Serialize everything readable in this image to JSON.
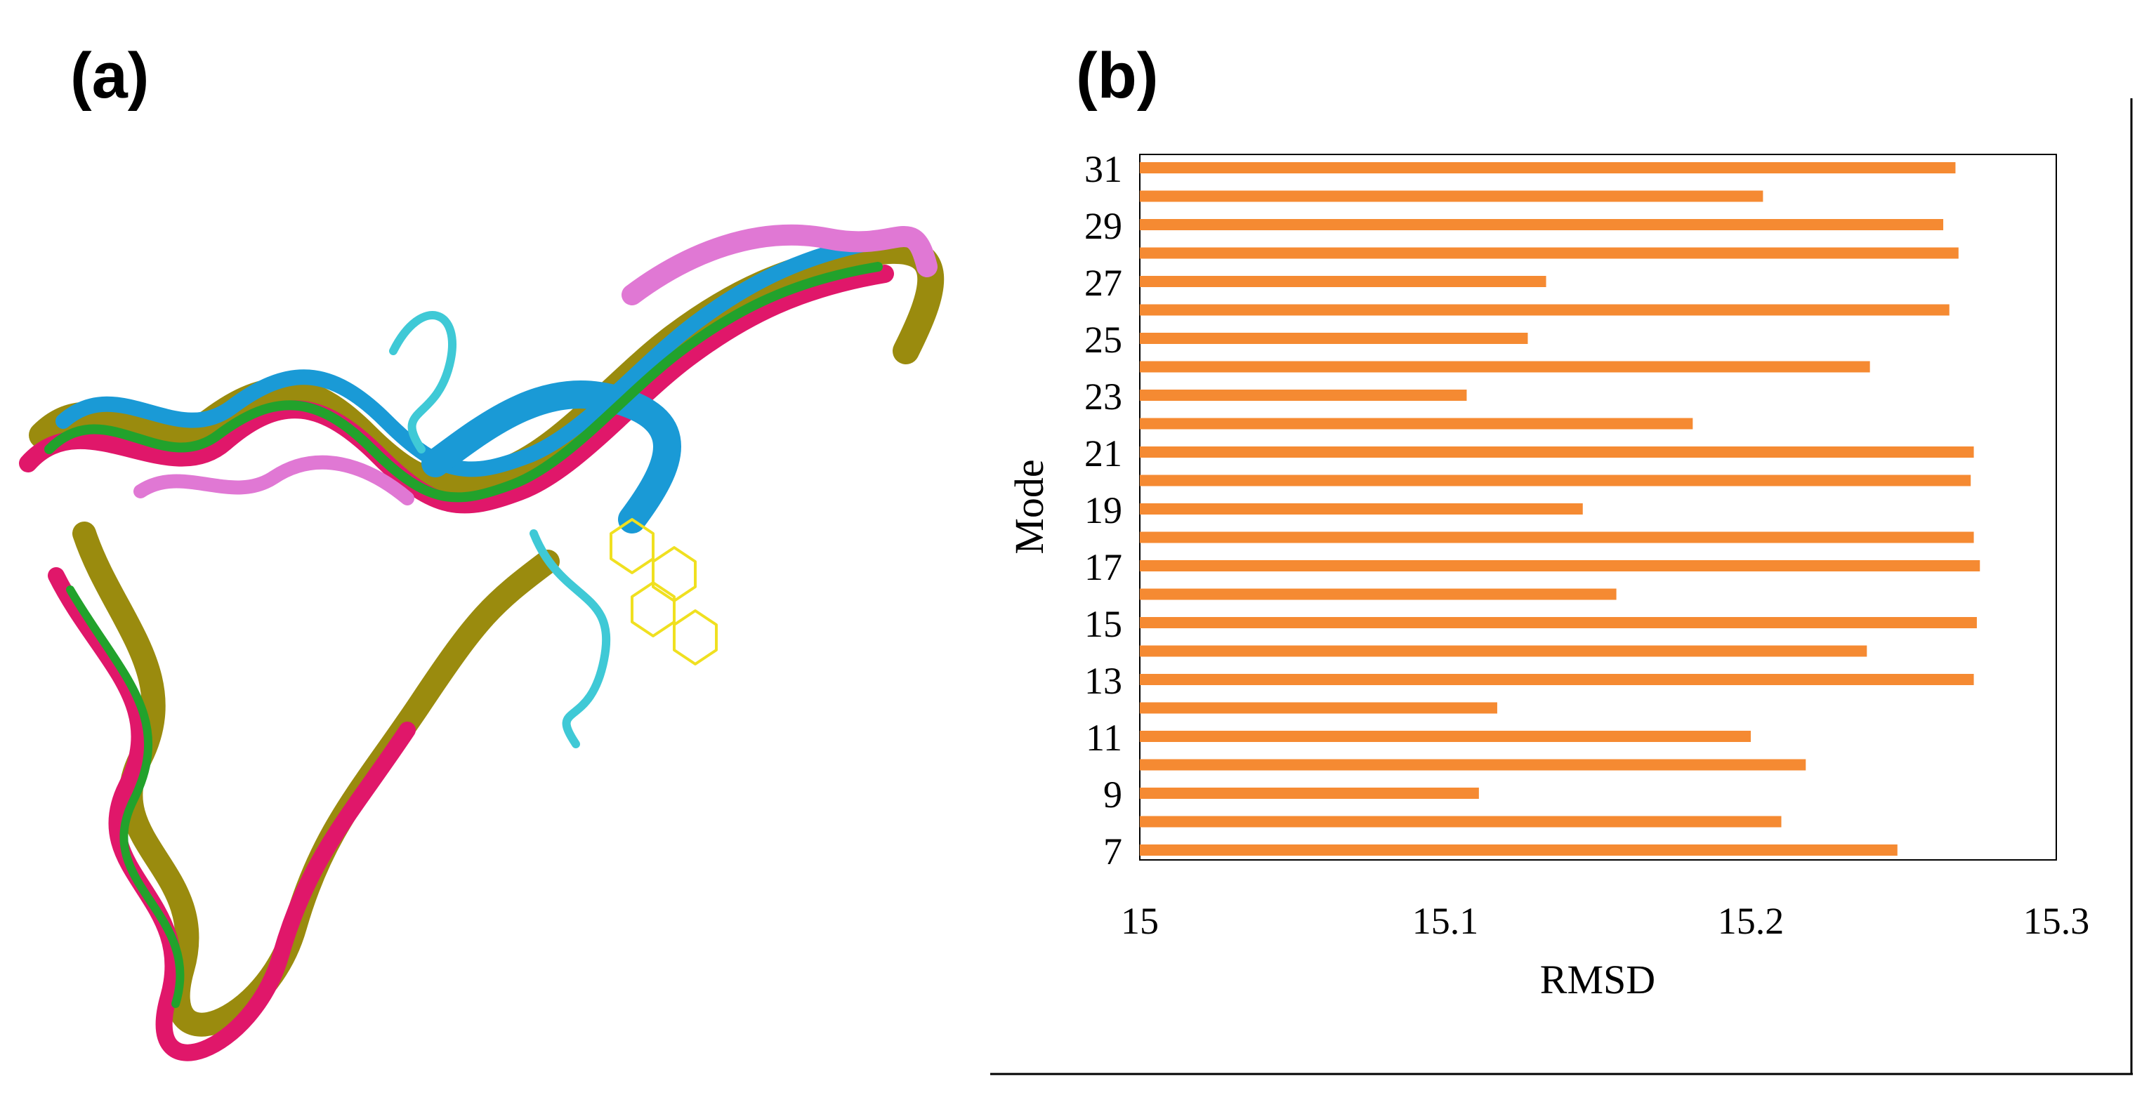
{
  "panels": {
    "a_label": "(a)",
    "b_label": "(b)"
  },
  "structure_image": {
    "description_icon": "protein-structure-superposition",
    "colors": [
      "#9a8b0e",
      "#e0176a",
      "#1a9ad6",
      "#22a22c",
      "#e078d4",
      "#f0e020"
    ]
  },
  "chart_data": {
    "type": "bar",
    "orientation": "horizontal",
    "title": "",
    "xlabel": "RMSD",
    "ylabel": "Mode",
    "xlim": [
      15,
      15.3
    ],
    "x_ticks": [
      "15",
      "15.1",
      "15.2",
      "15.3"
    ],
    "y_tick_labels": [
      "7",
      "9",
      "11",
      "13",
      "15",
      "17",
      "19",
      "21",
      "23",
      "25",
      "27",
      "29",
      "31"
    ],
    "categories": [
      7,
      8,
      9,
      10,
      11,
      12,
      13,
      14,
      15,
      16,
      17,
      18,
      19,
      20,
      21,
      22,
      23,
      24,
      25,
      26,
      27,
      28,
      29,
      30,
      31
    ],
    "values": [
      15.248,
      15.21,
      15.111,
      15.218,
      15.2,
      15.117,
      15.273,
      15.238,
      15.274,
      15.156,
      15.275,
      15.273,
      15.145,
      15.272,
      15.273,
      15.181,
      15.107,
      15.239,
      15.127,
      15.265,
      15.133,
      15.268,
      15.263,
      15.204,
      15.267
    ],
    "bar_color": "#f58a32",
    "grid": false,
    "legend": "none"
  }
}
